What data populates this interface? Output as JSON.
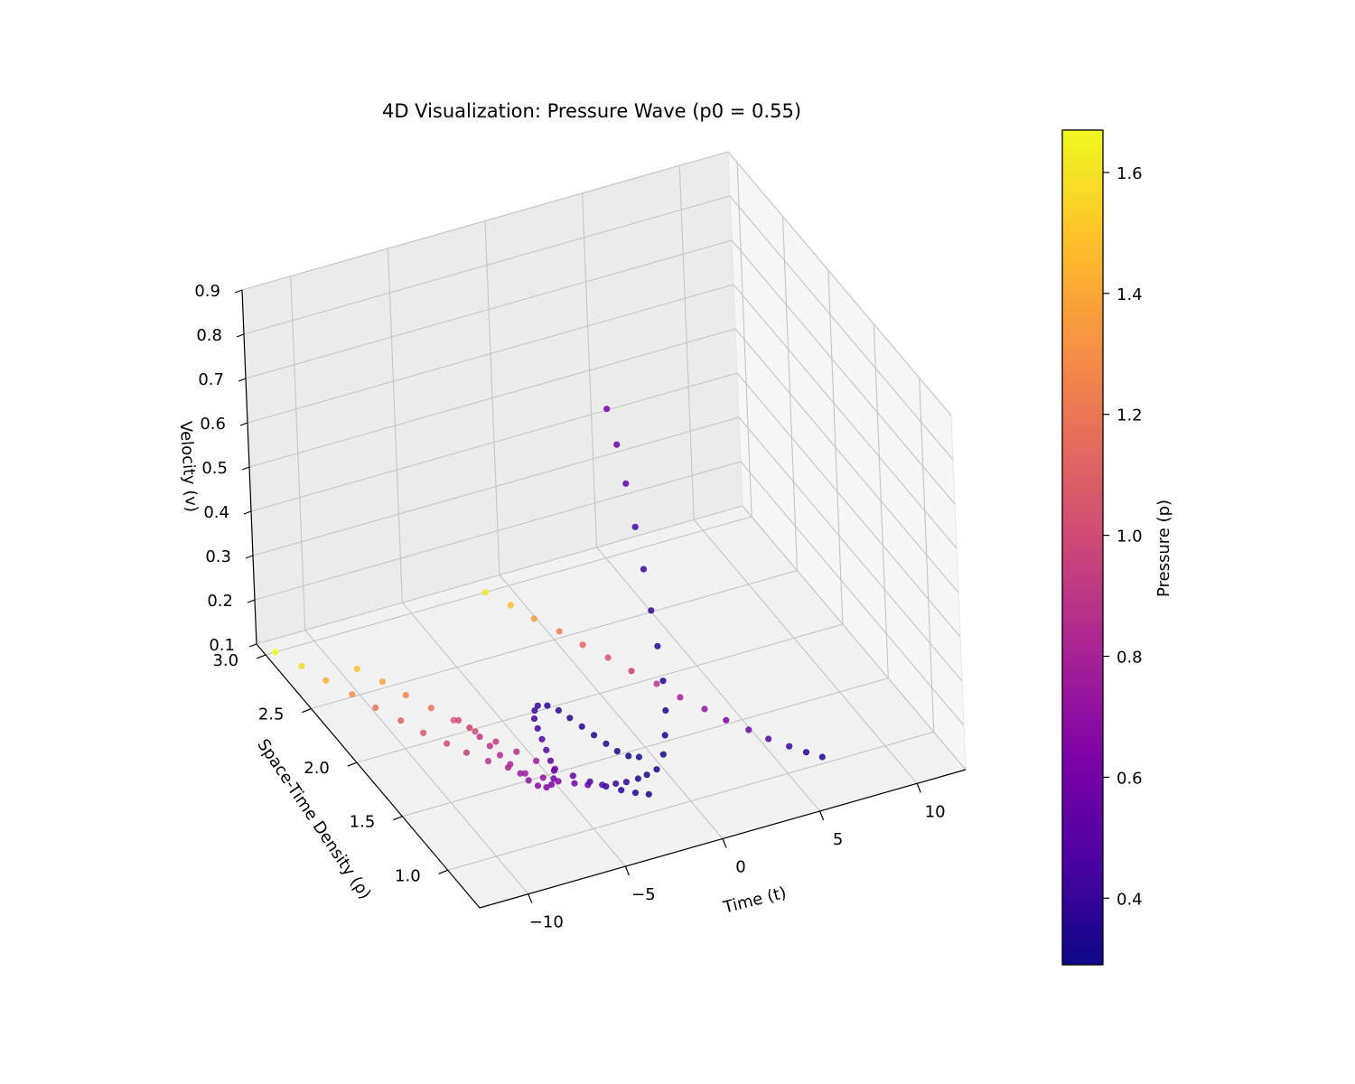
{
  "chart_data": {
    "type": "scatter",
    "title": "4D Visualization: Pressure Wave (p0 = 0.55)",
    "xlabel": "Time (t)",
    "ylabel": "Space-Time Density (ρ)",
    "zlabel": "Velocity (v)",
    "colorbar_label": "Pressure (p)",
    "colormap": "plasma",
    "xlim": [
      -12.5,
      12.5
    ],
    "ylim": [
      0.65,
      3.1
    ],
    "zlim": [
      0.1,
      0.9
    ],
    "clim": [
      0.29,
      1.67
    ],
    "x_ticks": [
      {
        "value": -10,
        "label": "−10"
      },
      {
        "value": -5,
        "label": "−5"
      },
      {
        "value": 0,
        "label": "0"
      },
      {
        "value": 5,
        "label": "5"
      },
      {
        "value": 10,
        "label": "10"
      }
    ],
    "y_ticks": [
      {
        "value": 1.0,
        "label": "1.0"
      },
      {
        "value": 1.5,
        "label": "1.5"
      },
      {
        "value": 2.0,
        "label": "2.0"
      },
      {
        "value": 2.5,
        "label": "2.5"
      },
      {
        "value": 3.0,
        "label": "3.0"
      }
    ],
    "z_ticks": [
      {
        "value": 0.1,
        "label": "0.1"
      },
      {
        "value": 0.2,
        "label": "0.2"
      },
      {
        "value": 0.3,
        "label": "0.3"
      },
      {
        "value": 0.4,
        "label": "0.4"
      },
      {
        "value": 0.5,
        "label": "0.5"
      },
      {
        "value": 0.6,
        "label": "0.6"
      },
      {
        "value": 0.7,
        "label": "0.7"
      },
      {
        "value": 0.8,
        "label": "0.8"
      },
      {
        "value": 0.9,
        "label": "0.9"
      }
    ],
    "colorbar_ticks": [
      {
        "value": 0.4,
        "label": "0.4"
      },
      {
        "value": 0.6,
        "label": "0.6"
      },
      {
        "value": 0.8,
        "label": "0.8"
      },
      {
        "value": 1.0,
        "label": "1.0"
      },
      {
        "value": 1.2,
        "label": "1.2"
      },
      {
        "value": 1.4,
        "label": "1.4"
      },
      {
        "value": 1.6,
        "label": "1.6"
      }
    ],
    "grid": true,
    "series": [
      {
        "points": [
          [
            -12,
            3,
            0.1,
            1.67
          ],
          [
            -11.4,
            2.84,
            0.1,
            1.55
          ],
          [
            -10.9,
            2.68,
            0.1,
            1.42
          ],
          [
            -10.3,
            2.52,
            0.1,
            1.3
          ],
          [
            -9.8,
            2.37,
            0.1,
            1.2
          ],
          [
            -9.2,
            2.22,
            0.1,
            1.12
          ],
          [
            -8.7,
            2.08,
            0.1,
            1.06
          ],
          [
            -8.1,
            1.95,
            0.1,
            1.0
          ],
          [
            -7.6,
            1.84,
            0.1,
            0.93
          ],
          [
            -7,
            1.73,
            0.1,
            0.88
          ],
          [
            -6.4,
            1.64,
            0.1,
            0.82
          ],
          [
            -5.9,
            1.56,
            0.1,
            0.76
          ],
          [
            -5.3,
            1.49,
            0.1,
            0.7
          ],
          [
            -4.8,
            1.43,
            0.1,
            0.65
          ],
          [
            -4.2,
            1.38,
            0.1,
            0.59
          ],
          [
            -3.7,
            1.34,
            0.1,
            0.53
          ],
          [
            -3.1,
            1.31,
            0.1,
            0.48
          ],
          [
            -2.5,
            1.29,
            0.1,
            0.43
          ],
          [
            -2,
            1.28,
            0.1,
            0.38
          ],
          [
            -1.4,
            1.28,
            0.1,
            0.34
          ],
          [
            -0.9,
            1.29,
            0.1,
            0.32
          ],
          [
            -0.3,
            1.31,
            0.1,
            0.3
          ],
          [
            0.2,
            1.34,
            0.12,
            0.3
          ],
          [
            0.5,
            1.38,
            0.15,
            0.31
          ],
          [
            0.8,
            1.43,
            0.19,
            0.32
          ],
          [
            1.0,
            1.49,
            0.24,
            0.34
          ],
          [
            1.1,
            1.56,
            0.3,
            0.36
          ],
          [
            1.2,
            1.64,
            0.36,
            0.39
          ],
          [
            1.3,
            1.73,
            0.43,
            0.43
          ],
          [
            1.4,
            1.83,
            0.5,
            0.48
          ],
          [
            1.5,
            1.94,
            0.57,
            0.53
          ],
          [
            1.6,
            2.05,
            0.63,
            0.58
          ],
          [
            1.7,
            2.17,
            0.68,
            0.62
          ]
        ]
      },
      {
        "points": [
          [
            -9.2,
            2.7,
            0.1,
            1.5
          ],
          [
            -8.6,
            2.55,
            0.1,
            1.38
          ],
          [
            -8.1,
            2.4,
            0.1,
            1.27
          ],
          [
            -7.5,
            2.25,
            0.1,
            1.18
          ],
          [
            -7,
            2.11,
            0.1,
            1.08
          ],
          [
            -6.5,
            1.98,
            0.1,
            1.0
          ],
          [
            -6,
            1.86,
            0.1,
            0.92
          ],
          [
            -5.5,
            1.74,
            0.1,
            0.85
          ],
          [
            -5,
            1.63,
            0.1,
            0.76
          ],
          [
            -4.5,
            1.53,
            0.1,
            0.66
          ],
          [
            -4,
            1.44,
            0.1,
            0.55
          ],
          [
            -3.5,
            1.36,
            0.1,
            0.47
          ],
          [
            -3,
            1.29,
            0.1,
            0.42
          ],
          [
            -2.5,
            1.23,
            0.1,
            0.38
          ],
          [
            -2,
            1.18,
            0.1,
            0.34
          ],
          [
            -1.5,
            1.14,
            0.1,
            0.32
          ]
        ]
      },
      {
        "points": [
          [
            -6.8,
            2.1,
            0.1,
            1.0
          ],
          [
            -6.6,
            2.02,
            0.1,
            0.96
          ],
          [
            -6.5,
            1.93,
            0.1,
            0.92
          ],
          [
            -6.4,
            1.84,
            0.1,
            0.88
          ],
          [
            -6.3,
            1.75,
            0.1,
            0.84
          ],
          [
            -6.2,
            1.66,
            0.1,
            0.8
          ],
          [
            -6.1,
            1.57,
            0.1,
            0.76
          ],
          [
            -6,
            1.5,
            0.1,
            0.72
          ],
          [
            -5.8,
            1.44,
            0.1,
            0.68
          ],
          [
            -5.5,
            1.41,
            0.1,
            0.65
          ],
          [
            -5.2,
            1.42,
            0.1,
            0.62
          ],
          [
            -4.9,
            1.46,
            0.1,
            0.58
          ],
          [
            -4.6,
            1.52,
            0.1,
            0.55
          ],
          [
            -4.4,
            1.6,
            0.1,
            0.52
          ],
          [
            -4.2,
            1.69,
            0.1,
            0.5
          ],
          [
            -4.0,
            1.78,
            0.1,
            0.48
          ],
          [
            -3.8,
            1.87,
            0.1,
            0.46
          ],
          [
            -3.6,
            1.95,
            0.1,
            0.44
          ],
          [
            -3.3,
            2.01,
            0.1,
            0.42
          ],
          [
            -3.0,
            2.04,
            0.1,
            0.4
          ],
          [
            -2.6,
            2.02,
            0.1,
            0.38
          ],
          [
            -2.3,
            1.96,
            0.1,
            0.37
          ],
          [
            -2.1,
            1.88,
            0.1,
            0.36
          ],
          [
            -1.9,
            1.79,
            0.1,
            0.35
          ],
          [
            -1.7,
            1.7,
            0.1,
            0.34
          ],
          [
            -1.5,
            1.61,
            0.1,
            0.33
          ],
          [
            -1.3,
            1.53,
            0.1,
            0.32
          ],
          [
            -1.0,
            1.47,
            0.1,
            0.31
          ],
          [
            -0.6,
            1.44,
            0.1,
            0.3
          ]
        ]
      },
      {
        "points": [
          [
            -1.2,
            3,
            0.1,
            1.62
          ],
          [
            -0.6,
            2.85,
            0.1,
            1.48
          ],
          [
            -0.1,
            2.7,
            0.1,
            1.35
          ],
          [
            0.5,
            2.55,
            0.1,
            1.24
          ],
          [
            1,
            2.4,
            0.1,
            1.14
          ],
          [
            1.6,
            2.25,
            0.1,
            1.04
          ],
          [
            2.1,
            2.1,
            0.1,
            0.96
          ],
          [
            2.7,
            1.95,
            0.1,
            0.88
          ],
          [
            3.2,
            1.8,
            0.1,
            0.8
          ],
          [
            3.8,
            1.66,
            0.1,
            0.72
          ],
          [
            4.3,
            1.53,
            0.1,
            0.64
          ],
          [
            4.9,
            1.41,
            0.1,
            0.56
          ],
          [
            5.4,
            1.3,
            0.1,
            0.48
          ],
          [
            6,
            1.2,
            0.1,
            0.42
          ],
          [
            6.5,
            1.12,
            0.1,
            0.38
          ],
          [
            7,
            1.05,
            0.1,
            0.34
          ]
        ]
      }
    ]
  }
}
